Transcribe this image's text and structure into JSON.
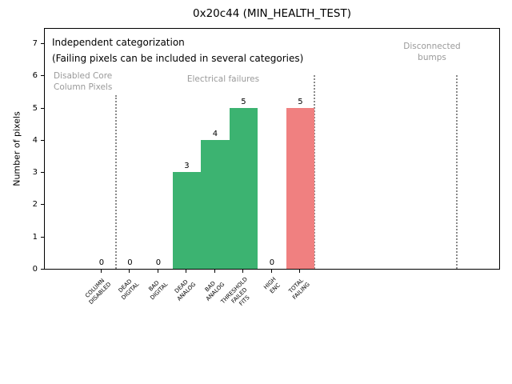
{
  "title": "0x20c44 (MIN_HEALTH_TEST)",
  "chart_data": {
    "type": "bar",
    "title": "0x20c44 (MIN_HEALTH_TEST)",
    "xlabel": "",
    "ylabel": "Number of pixels",
    "categories": [
      "COLUMN\nDISABLED",
      "DEAD\nDIGITAL",
      "BAD\nDIGITAL",
      "DEAD\nANALOG",
      "BAD\nANALOG",
      "THRESHOLD\nFAILED\nFITS",
      "HIGH\nENC",
      "TOTAL\nFAILING"
    ],
    "values": [
      0,
      0,
      0,
      3,
      4,
      5,
      0,
      5
    ],
    "bar_colors": [
      "#3cb371",
      "#3cb371",
      "#3cb371",
      "#3cb371",
      "#3cb371",
      "#3cb371",
      "#3cb371",
      "#f08080"
    ],
    "value_labels": [
      "0",
      "0",
      "0",
      "3",
      "4",
      "5",
      "0",
      "5"
    ],
    "yticks": [
      0,
      1,
      2,
      3,
      4,
      5,
      6,
      7
    ],
    "ylim": [
      0,
      7.5
    ],
    "xlim": [
      -2,
      14.06
    ],
    "bar_width": 1,
    "grid": false,
    "legend": null,
    "separators": [
      {
        "x": 0.5,
        "top": 5.4
      },
      {
        "x": 7.5,
        "top": 6.0
      },
      {
        "x": 12.5,
        "top": 6.0
      }
    ],
    "annotations": {
      "note1": "Independent categorization",
      "note2": "(Failing pixels can be included in several categories)",
      "disabled_core": "Disabled Core\nColumn Pixels",
      "electrical": "Electrical failures",
      "disconnected": "Disconnected\nbumps"
    },
    "colors": {
      "bar_green": "#3cb371",
      "bar_red": "#f08080",
      "annotation_gray": "#9a9a9a",
      "separator_gray": "#8a8a8a",
      "axis_black": "#000000"
    }
  }
}
